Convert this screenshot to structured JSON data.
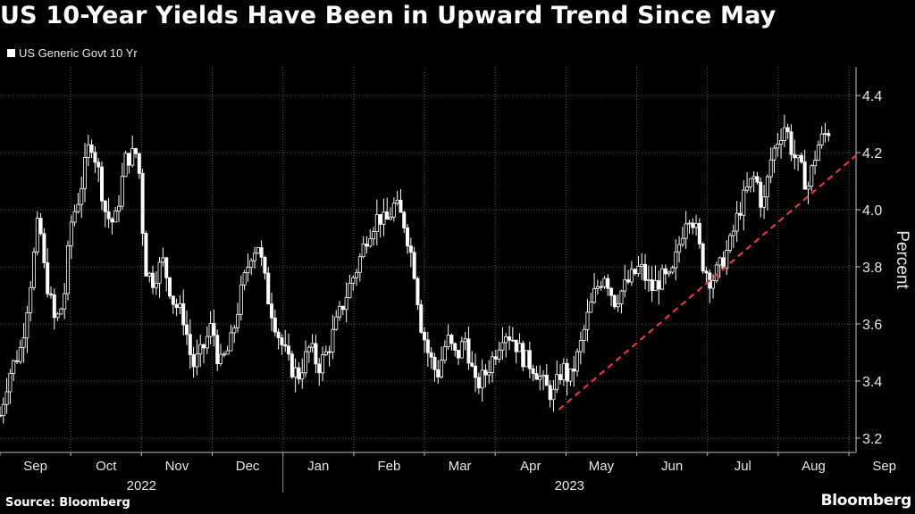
{
  "header": {
    "title": "US 10-Year Yields Have Been in Upward Trend Since May",
    "legend_label": "US Generic Govt 10 Yr"
  },
  "footer": {
    "source": "Source: Bloomberg",
    "brand": "Bloomberg"
  },
  "colors": {
    "background": "#000000",
    "series": "#ffffff",
    "trendline": "#e8334a",
    "grid": "#5a5a5a"
  },
  "chart_data": {
    "type": "candlestick",
    "title": "US 10-Year Yields Have Been in Upward Trend Since May",
    "series_name": "US Generic Govt 10 Yr",
    "ylabel": "Percent",
    "ylim": [
      3.15,
      4.5
    ],
    "yticks": [
      3.2,
      3.4,
      3.6,
      3.8,
      4.0,
      4.2,
      4.4
    ],
    "ytick_labels": [
      "3.2",
      "3.4",
      "3.6",
      "3.8",
      "4.0",
      "4.2",
      "4.4"
    ],
    "x_range": [
      0,
      12.1
    ],
    "months": [
      "Sep",
      "Oct",
      "Nov",
      "Dec",
      "Jan",
      "Feb",
      "Mar",
      "Apr",
      "May",
      "Jun",
      "Jul",
      "Aug",
      "Sep"
    ],
    "years": [
      {
        "label": "2022",
        "start": 0,
        "end": 4
      },
      {
        "label": "2023",
        "start": 4,
        "end": 12.1
      }
    ],
    "grid": true,
    "key_points": [
      [
        0.0,
        3.28
      ],
      [
        0.12,
        3.42
      ],
      [
        0.3,
        3.52
      ],
      [
        0.45,
        3.78
      ],
      [
        0.55,
        3.98
      ],
      [
        0.62,
        3.8
      ],
      [
        0.78,
        3.6
      ],
      [
        0.9,
        3.68
      ],
      [
        1.0,
        3.95
      ],
      [
        1.12,
        4.05
      ],
      [
        1.28,
        4.25
      ],
      [
        1.38,
        4.15
      ],
      [
        1.5,
        3.98
      ],
      [
        1.62,
        3.95
      ],
      [
        1.78,
        4.18
      ],
      [
        1.95,
        4.2
      ],
      [
        2.05,
        3.8
      ],
      [
        2.15,
        3.75
      ],
      [
        2.3,
        3.82
      ],
      [
        2.45,
        3.68
      ],
      [
        2.6,
        3.62
      ],
      [
        2.72,
        3.45
      ],
      [
        2.85,
        3.5
      ],
      [
        3.0,
        3.6
      ],
      [
        3.1,
        3.45
      ],
      [
        3.25,
        3.52
      ],
      [
        3.4,
        3.7
      ],
      [
        3.55,
        3.85
      ],
      [
        3.65,
        3.88
      ],
      [
        3.78,
        3.7
      ],
      [
        3.95,
        3.55
      ],
      [
        4.1,
        3.45
      ],
      [
        4.22,
        3.42
      ],
      [
        4.38,
        3.52
      ],
      [
        4.5,
        3.45
      ],
      [
        4.62,
        3.5
      ],
      [
        4.78,
        3.62
      ],
      [
        4.92,
        3.72
      ],
      [
        5.05,
        3.8
      ],
      [
        5.2,
        3.92
      ],
      [
        5.35,
        3.98
      ],
      [
        5.45,
        3.95
      ],
      [
        5.58,
        4.02
      ],
      [
        5.72,
        3.95
      ],
      [
        5.85,
        3.8
      ],
      [
        5.95,
        3.6
      ],
      [
        6.05,
        3.5
      ],
      [
        6.18,
        3.42
      ],
      [
        6.32,
        3.55
      ],
      [
        6.45,
        3.48
      ],
      [
        6.58,
        3.55
      ],
      [
        6.72,
        3.38
      ],
      [
        6.85,
        3.42
      ],
      [
        7.0,
        3.5
      ],
      [
        7.12,
        3.58
      ],
      [
        7.25,
        3.55
      ],
      [
        7.4,
        3.48
      ],
      [
        7.55,
        3.45
      ],
      [
        7.7,
        3.38
      ],
      [
        7.82,
        3.35
      ],
      [
        7.95,
        3.45
      ],
      [
        8.05,
        3.4
      ],
      [
        8.18,
        3.5
      ],
      [
        8.3,
        3.62
      ],
      [
        8.42,
        3.72
      ],
      [
        8.55,
        3.78
      ],
      [
        8.68,
        3.68
      ],
      [
        8.8,
        3.72
      ],
      [
        8.92,
        3.76
      ],
      [
        9.05,
        3.8
      ],
      [
        9.2,
        3.72
      ],
      [
        9.35,
        3.76
      ],
      [
        9.48,
        3.75
      ],
      [
        9.6,
        3.88
      ],
      [
        9.72,
        4.0
      ],
      [
        9.82,
        3.95
      ],
      [
        9.92,
        3.82
      ],
      [
        10.05,
        3.75
      ],
      [
        10.18,
        3.8
      ],
      [
        10.32,
        3.88
      ],
      [
        10.45,
        4.0
      ],
      [
        10.58,
        4.08
      ],
      [
        10.68,
        4.12
      ],
      [
        10.78,
        4.0
      ],
      [
        10.9,
        4.18
      ],
      [
        11.0,
        4.25
      ],
      [
        11.1,
        4.3
      ],
      [
        11.2,
        4.2
      ],
      [
        11.3,
        4.15
      ],
      [
        11.42,
        4.08
      ],
      [
        11.55,
        4.22
      ],
      [
        11.65,
        4.26
      ],
      [
        11.72,
        4.28
      ]
    ],
    "trendline": {
      "start": {
        "x": 7.9,
        "y": 3.3
      },
      "end": {
        "x": 12.1,
        "y": 4.19
      },
      "style": "dashed"
    }
  }
}
